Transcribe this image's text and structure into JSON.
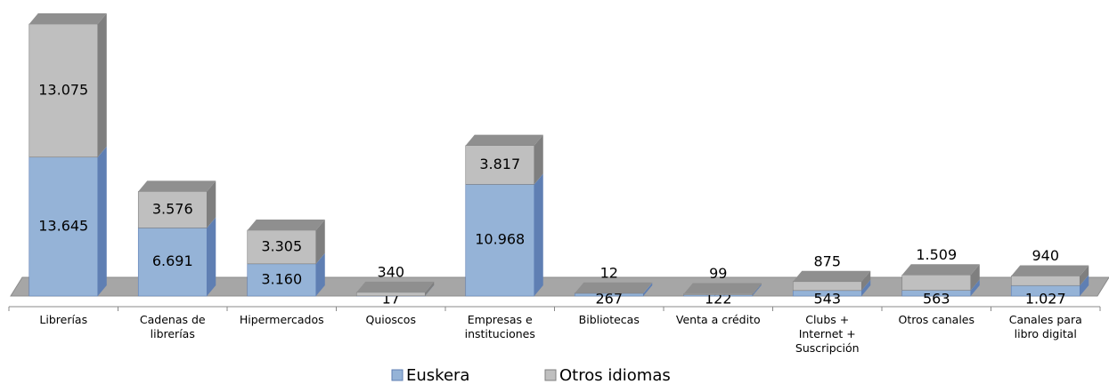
{
  "chart_data": {
    "type": "bar3d_stacked",
    "categories": [
      "Librerías",
      "Cadenas de librerías",
      "Hipermercados",
      "Quioscos",
      "Empresas e instituciones",
      "Bibliotecas",
      "Venta a crédito",
      "Clubs + Internet + Suscripción",
      "Otros canales",
      "Canales para libro digital"
    ],
    "series": [
      {
        "name": "Euskera",
        "color": "#95b3d7",
        "side": "#5f7fb3",
        "top": "#b8cce4",
        "values": [
          13645,
          6691,
          3160,
          17,
          10968,
          267,
          122,
          543,
          563,
          1027
        ],
        "value_labels": [
          "13.645",
          "6.691",
          "3.160",
          "17",
          "10.968",
          "267",
          "122",
          "543",
          "563",
          "1.027"
        ]
      },
      {
        "name": "Otros idiomas",
        "color": "#bfbfbf",
        "side": "#7f7f7f",
        "top": "#8f8f8f",
        "values": [
          13075,
          3576,
          3305,
          340,
          3817,
          12,
          99,
          875,
          1509,
          940
        ],
        "value_labels": [
          "13.075",
          "3.576",
          "3.305",
          "340",
          "3.817",
          "12",
          "99",
          "875",
          "1.509",
          "940"
        ]
      }
    ],
    "legend": "bottom"
  }
}
